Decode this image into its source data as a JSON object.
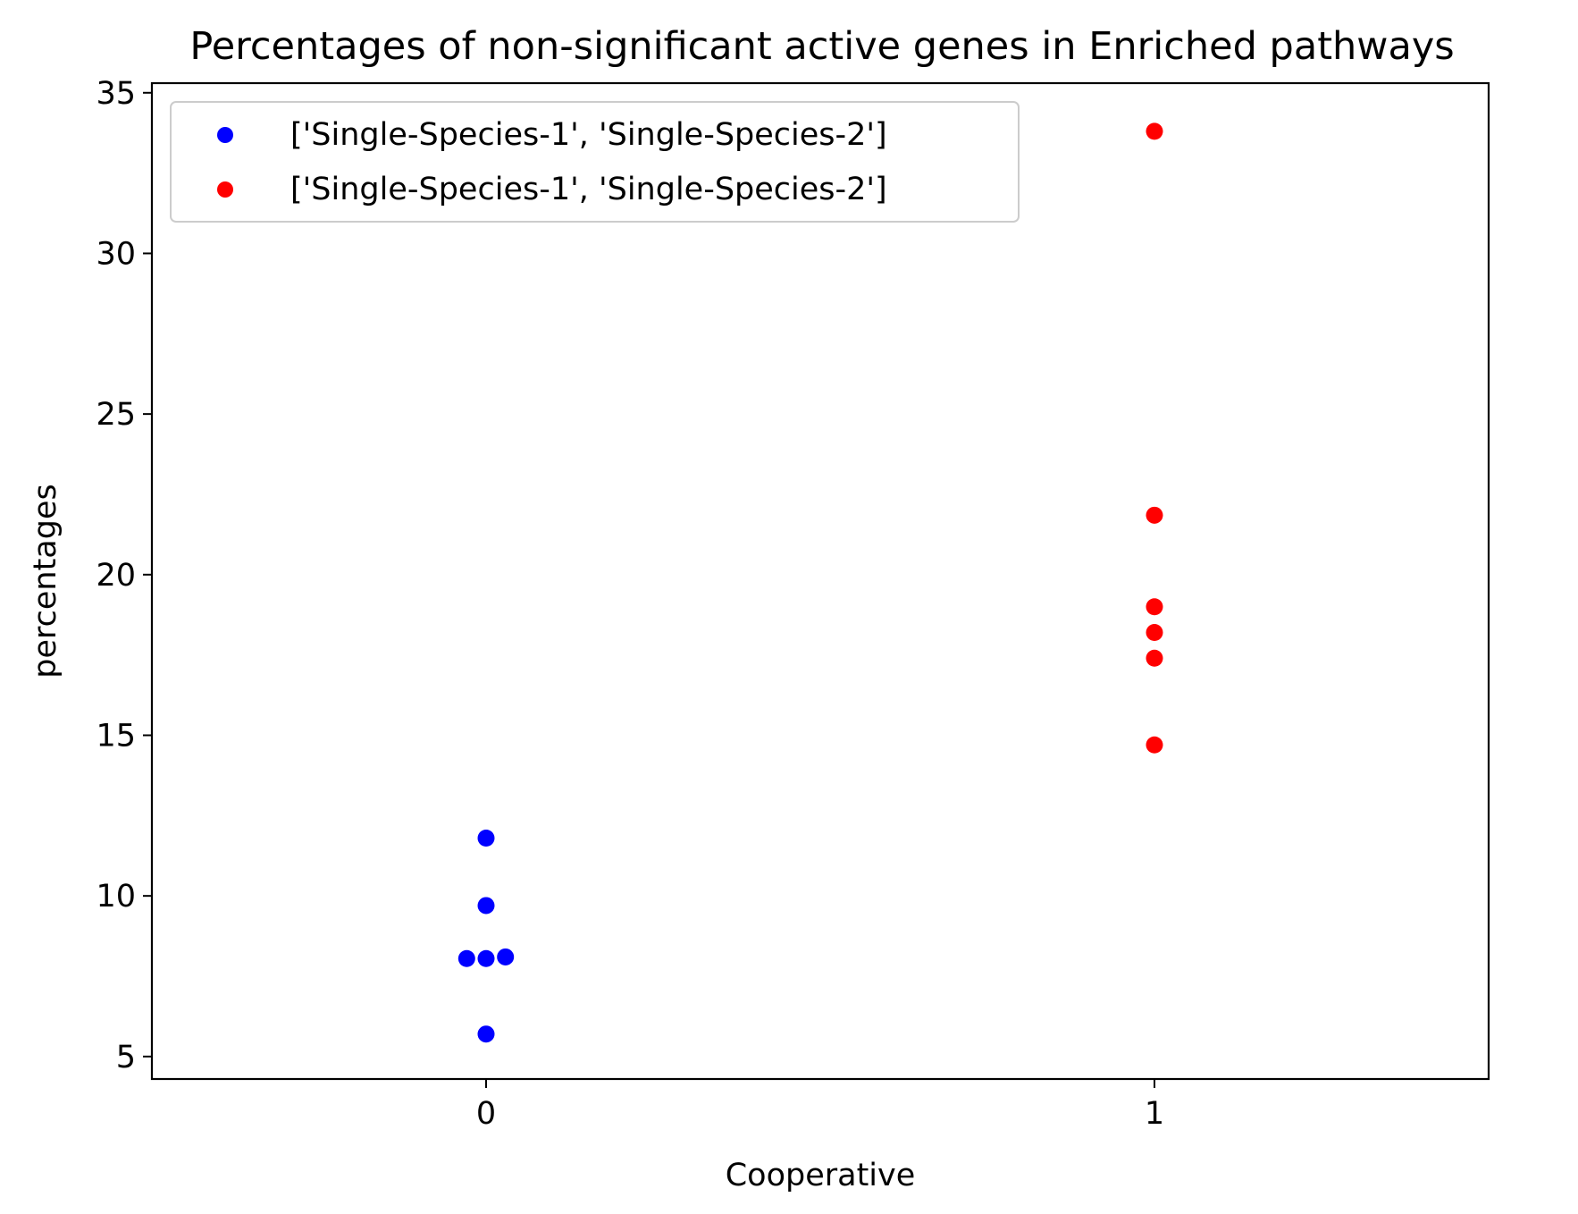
{
  "chart_data": {
    "type": "scatter",
    "title": "Percentages of non-significant active genes in Enriched pathways",
    "xlabel": "Cooperative",
    "ylabel": "percentages",
    "xlim": [
      -0.5,
      1.5
    ],
    "ylim": [
      4.3,
      35.3
    ],
    "x_ticks": [
      0,
      1
    ],
    "y_ticks": [
      5,
      10,
      15,
      20,
      25,
      30,
      35
    ],
    "grid": false,
    "legend_position": "top-left",
    "series": [
      {
        "name": "['Single-Species-1', 'Single-Species-2']",
        "color": "#0000ff",
        "points": [
          {
            "x": 0,
            "y": 11.8
          },
          {
            "x": 0,
            "y": 9.7
          },
          {
            "x": -0.029,
            "y": 8.05
          },
          {
            "x": 0,
            "y": 8.05
          },
          {
            "x": 0.029,
            "y": 8.1
          },
          {
            "x": 0,
            "y": 5.7
          }
        ]
      },
      {
        "name": "['Single-Species-1', 'Single-Species-2']",
        "color": "#ff0000",
        "points": [
          {
            "x": 1,
            "y": 33.8
          },
          {
            "x": 1,
            "y": 21.85
          },
          {
            "x": 1,
            "y": 19.0
          },
          {
            "x": 1,
            "y": 18.2
          },
          {
            "x": 1,
            "y": 17.4
          },
          {
            "x": 1,
            "y": 14.7
          }
        ]
      }
    ]
  }
}
